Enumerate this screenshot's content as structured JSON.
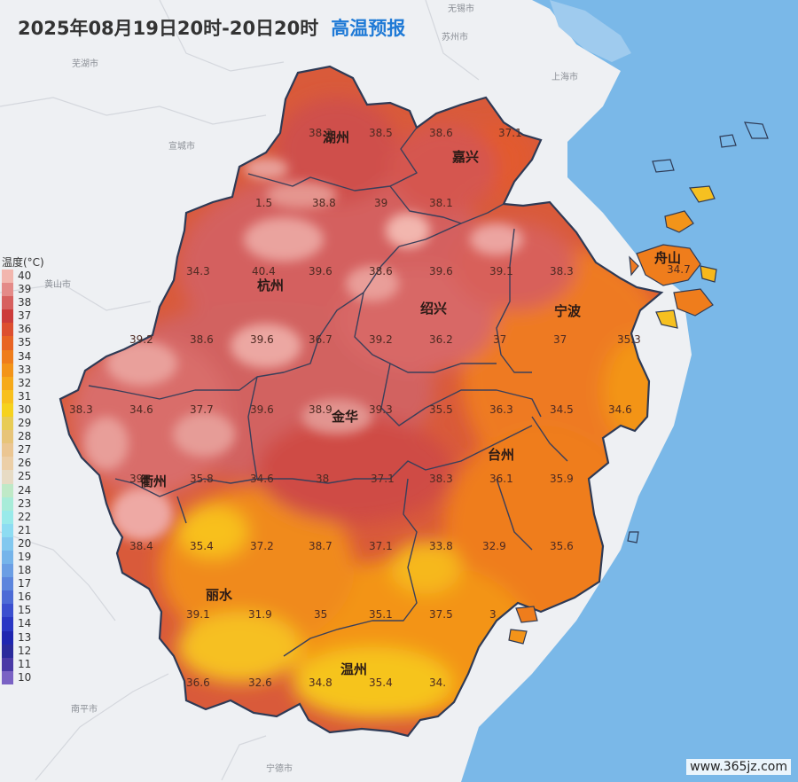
{
  "header": {
    "title": "2025年08月19日20时-20日20时",
    "forecast_type": "高温预报"
  },
  "legend": {
    "title": "温度(°C)",
    "items": [
      {
        "label": "40",
        "color": "#f2b6ae"
      },
      {
        "label": "39",
        "color": "#e48a88"
      },
      {
        "label": "38",
        "color": "#d7605f"
      },
      {
        "label": "37",
        "color": "#cc3c3b"
      },
      {
        "label": "36",
        "color": "#dd4f30"
      },
      {
        "label": "35",
        "color": "#e86424"
      },
      {
        "label": "34",
        "color": "#ef7d1c"
      },
      {
        "label": "33",
        "color": "#f39419"
      },
      {
        "label": "32",
        "color": "#f6aa1b"
      },
      {
        "label": "31",
        "color": "#f8c01e"
      },
      {
        "label": "30",
        "color": "#f6d21e"
      },
      {
        "label": "29",
        "color": "#e8cc55"
      },
      {
        "label": "28",
        "color": "#e7c479"
      },
      {
        "label": "27",
        "color": "#ebc692"
      },
      {
        "label": "26",
        "color": "#eccfa7"
      },
      {
        "label": "25",
        "color": "#e7dbc4"
      },
      {
        "label": "24",
        "color": "#bfe9c7"
      },
      {
        "label": "23",
        "color": "#a8ecd9"
      },
      {
        "label": "22",
        "color": "#99eaea"
      },
      {
        "label": "21",
        "color": "#8ddcf2"
      },
      {
        "label": "20",
        "color": "#82c8ef"
      },
      {
        "label": "19",
        "color": "#76b4ea"
      },
      {
        "label": "18",
        "color": "#6b9ee4"
      },
      {
        "label": "17",
        "color": "#5c85dd"
      },
      {
        "label": "16",
        "color": "#4d6bd6"
      },
      {
        "label": "15",
        "color": "#3b4fcf"
      },
      {
        "label": "14",
        "color": "#2a37c4"
      },
      {
        "label": "13",
        "color": "#1f26b0"
      },
      {
        "label": "12",
        "color": "#2a2a9c"
      },
      {
        "label": "11",
        "color": "#4a3aa6"
      },
      {
        "label": "10",
        "color": "#7a62c4"
      }
    ]
  },
  "neighbor_cities": [
    "无锡市",
    "苏州市",
    "芜湖市",
    "上海市",
    "宣城市",
    "黄山市",
    "南平市",
    "宁德市"
  ],
  "cities": [
    "湖州",
    "嘉兴",
    "杭州",
    "绍兴",
    "宁波",
    "舟山",
    "金华",
    "衢州",
    "台州",
    "丽水",
    "温州"
  ],
  "values": [
    "38.3",
    "38.5",
    "38.6",
    "37.1",
    "38.8",
    "39",
    "38.1",
    "1.5",
    "34.3",
    "40.4",
    "39.6",
    "38.6",
    "39.6",
    "39.1",
    "38.3",
    "39.2",
    "38.6",
    "39.6",
    "36.7",
    "39.2",
    "36.2",
    "37",
    "37",
    "35.3",
    "38.3",
    "34.6",
    "37.7",
    "39.6",
    "38.9",
    "39.3",
    "35.5",
    "36.3",
    "34.5",
    "34.6",
    "39",
    "35.8",
    "34.6",
    "38",
    "37.1",
    "38.3",
    "36.1",
    "35.9",
    "38.4",
    "35.4",
    "37.2",
    "38.7",
    "37.1",
    "33.8",
    "32.9",
    "35.6",
    "39.1",
    "31.9",
    "35",
    "35.1",
    "37.5",
    "3",
    "36.6",
    "32.6",
    "34.8",
    "35.4",
    "34.",
    "34.7"
  ],
  "colors": {
    "sea": "#7ab8e8",
    "land_outside": "#eef0f3",
    "border": "#2e3a55",
    "forecast_title": "#1f7ad6"
  },
  "watermark": "www.365jz.com"
}
